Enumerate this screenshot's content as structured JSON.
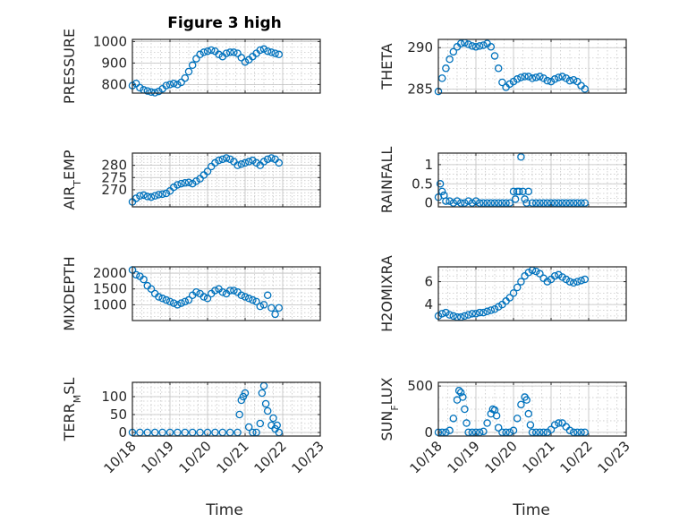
{
  "figure": {
    "title": "Figure 3 high",
    "x_axis_label": "Time"
  },
  "chart_data": [
    {
      "type": "scatter",
      "ylabel": "PRESSURE",
      "ylim": [
        760,
        1010
      ],
      "yticks": [
        800,
        900,
        1000
      ],
      "xlim": [
        "10/18",
        "10/23"
      ],
      "x": [
        0,
        0.1,
        0.2,
        0.3,
        0.4,
        0.5,
        0.6,
        0.7,
        0.8,
        0.9,
        1.0,
        1.1,
        1.2,
        1.3,
        1.4,
        1.5,
        1.6,
        1.7,
        1.8,
        1.9,
        2.0,
        2.1,
        2.2,
        2.3,
        2.4,
        2.5,
        2.6,
        2.7,
        2.8,
        2.9,
        3.0,
        3.1,
        3.2,
        3.3,
        3.4,
        3.5,
        3.6,
        3.7,
        3.8,
        3.9
      ],
      "y": [
        795,
        805,
        785,
        775,
        770,
        765,
        762,
        768,
        780,
        795,
        800,
        805,
        800,
        810,
        830,
        860,
        890,
        920,
        940,
        950,
        955,
        960,
        955,
        940,
        930,
        945,
        950,
        950,
        945,
        925,
        905,
        915,
        930,
        945,
        960,
        965,
        955,
        950,
        945,
        940
      ]
    },
    {
      "type": "scatter",
      "ylabel": "THETA",
      "ylim": [
        284.5,
        291
      ],
      "yticks": [
        285,
        290
      ],
      "xlim": [
        "10/18",
        "10/23"
      ],
      "x": [
        0,
        0.1,
        0.2,
        0.3,
        0.4,
        0.5,
        0.6,
        0.7,
        0.8,
        0.9,
        1.0,
        1.1,
        1.2,
        1.3,
        1.4,
        1.5,
        1.6,
        1.7,
        1.8,
        1.9,
        2.0,
        2.1,
        2.2,
        2.3,
        2.4,
        2.5,
        2.6,
        2.7,
        2.8,
        2.9,
        3.0,
        3.1,
        3.2,
        3.3,
        3.4,
        3.5,
        3.6,
        3.7,
        3.8,
        3.9
      ],
      "y": [
        284.7,
        286.3,
        287.5,
        288.6,
        289.5,
        290.1,
        290.5,
        290.6,
        290.4,
        290.2,
        290.1,
        290.2,
        290.3,
        290.5,
        290.1,
        289.0,
        287.5,
        285.8,
        285.2,
        285.6,
        285.9,
        286.2,
        286.4,
        286.5,
        286.5,
        286.3,
        286.4,
        286.5,
        286.3,
        286.0,
        285.9,
        286.2,
        286.4,
        286.5,
        286.3,
        286.0,
        286.1,
        285.9,
        285.4,
        285.0
      ]
    },
    {
      "type": "scatter",
      "ylabel": "AIR_TEMP",
      "ylim": [
        263,
        285
      ],
      "yticks": [
        270,
        275,
        280
      ],
      "xlim": [
        "10/18",
        "10/23"
      ],
      "x": [
        0,
        0.1,
        0.2,
        0.3,
        0.4,
        0.5,
        0.6,
        0.7,
        0.8,
        0.9,
        1.0,
        1.1,
        1.2,
        1.3,
        1.4,
        1.5,
        1.6,
        1.7,
        1.8,
        1.9,
        2.0,
        2.1,
        2.2,
        2.3,
        2.4,
        2.5,
        2.6,
        2.7,
        2.8,
        2.9,
        3.0,
        3.1,
        3.2,
        3.3,
        3.4,
        3.5,
        3.6,
        3.7,
        3.8,
        3.9
      ],
      "y": [
        265.0,
        266.5,
        267.5,
        267.8,
        267.2,
        267.0,
        267.5,
        268.0,
        268.2,
        268.5,
        269.5,
        271.0,
        272.0,
        272.5,
        272.8,
        273.0,
        272.5,
        273.5,
        274.5,
        276.0,
        277.5,
        279.5,
        281.0,
        282.0,
        282.5,
        283.0,
        282.5,
        281.5,
        280.0,
        280.5,
        281.0,
        281.5,
        282.0,
        281.0,
        280.0,
        281.5,
        282.5,
        283.0,
        282.5,
        281.0
      ]
    },
    {
      "type": "scatter",
      "ylabel": "RAINFALL",
      "ylim": [
        -0.1,
        1.3
      ],
      "yticks": [
        0,
        0.5,
        1
      ],
      "xlim": [
        "10/18",
        "10/23"
      ],
      "x": [
        0,
        0.05,
        0.1,
        0.15,
        0.2,
        0.3,
        0.4,
        0.5,
        0.6,
        0.7,
        0.8,
        0.9,
        1.0,
        1.1,
        1.2,
        1.3,
        1.4,
        1.5,
        1.6,
        1.7,
        1.8,
        1.9,
        2.0,
        2.05,
        2.1,
        2.15,
        2.2,
        2.25,
        2.3,
        2.35,
        2.4,
        2.5,
        2.6,
        2.7,
        2.8,
        2.9,
        3.0,
        3.1,
        3.2,
        3.3,
        3.4,
        3.5,
        3.6,
        3.7,
        3.8,
        3.9
      ],
      "y": [
        0.15,
        0.5,
        0.3,
        0.2,
        0.05,
        0.05,
        0,
        0.05,
        0,
        0,
        0.05,
        0,
        0.05,
        0,
        0,
        0,
        0,
        0,
        0,
        0,
        0,
        0,
        0.3,
        0.1,
        0.3,
        0.3,
        1.2,
        0.3,
        0.1,
        0,
        0.3,
        0,
        0,
        0,
        0,
        0,
        0,
        0,
        0,
        0,
        0,
        0,
        0,
        0,
        0,
        0
      ]
    },
    {
      "type": "scatter",
      "ylabel": "MIXDEPTH",
      "ylim": [
        500,
        2200
      ],
      "yticks": [
        1000,
        1500,
        2000
      ],
      "xlim": [
        "10/18",
        "10/23"
      ],
      "x": [
        0,
        0.1,
        0.2,
        0.3,
        0.4,
        0.5,
        0.6,
        0.7,
        0.8,
        0.9,
        1.0,
        1.1,
        1.2,
        1.3,
        1.4,
        1.5,
        1.6,
        1.7,
        1.8,
        1.9,
        2.0,
        2.1,
        2.2,
        2.3,
        2.4,
        2.5,
        2.6,
        2.7,
        2.8,
        2.9,
        3.0,
        3.1,
        3.2,
        3.3,
        3.4,
        3.5,
        3.6,
        3.7,
        3.8,
        3.9
      ],
      "y": [
        2100,
        1950,
        1900,
        1800,
        1600,
        1500,
        1350,
        1250,
        1200,
        1150,
        1100,
        1050,
        1000,
        1050,
        1100,
        1150,
        1300,
        1400,
        1350,
        1250,
        1200,
        1350,
        1450,
        1500,
        1400,
        1350,
        1450,
        1450,
        1400,
        1300,
        1250,
        1200,
        1150,
        1100,
        950,
        1000,
        1300,
        900,
        700,
        900
      ]
    },
    {
      "type": "scatter",
      "ylabel": "H2OMIXRA",
      "ylim": [
        2.6,
        7.3
      ],
      "yticks": [
        4,
        6
      ],
      "xlim": [
        "10/18",
        "10/23"
      ],
      "x": [
        0,
        0.1,
        0.2,
        0.3,
        0.4,
        0.5,
        0.6,
        0.7,
        0.8,
        0.9,
        1.0,
        1.1,
        1.2,
        1.3,
        1.4,
        1.5,
        1.6,
        1.7,
        1.8,
        1.9,
        2.0,
        2.1,
        2.2,
        2.3,
        2.4,
        2.5,
        2.6,
        2.7,
        2.8,
        2.9,
        3.0,
        3.1,
        3.2,
        3.3,
        3.4,
        3.5,
        3.6,
        3.7,
        3.8,
        3.9
      ],
      "y": [
        3.0,
        3.2,
        3.3,
        3.1,
        3.0,
        2.9,
        2.9,
        3.0,
        3.1,
        3.2,
        3.2,
        3.3,
        3.3,
        3.4,
        3.5,
        3.6,
        3.8,
        4.0,
        4.3,
        4.6,
        5.0,
        5.5,
        6.0,
        6.5,
        6.8,
        7.0,
        6.9,
        6.7,
        6.3,
        6.0,
        6.2,
        6.5,
        6.6,
        6.4,
        6.2,
        6.0,
        5.9,
        6.0,
        6.1,
        6.2
      ]
    },
    {
      "type": "scatter",
      "ylabel": "TERR_MSL",
      "ylim": [
        -10,
        140
      ],
      "yticks": [
        0,
        50,
        100
      ],
      "xlim": [
        "10/18",
        "10/23"
      ],
      "x": [
        0,
        0.2,
        0.4,
        0.6,
        0.8,
        1.0,
        1.2,
        1.4,
        1.6,
        1.8,
        2.0,
        2.2,
        2.4,
        2.6,
        2.8,
        2.85,
        2.9,
        2.95,
        3.0,
        3.1,
        3.2,
        3.3,
        3.4,
        3.45,
        3.5,
        3.55,
        3.6,
        3.7,
        3.75,
        3.8,
        3.85,
        3.9
      ],
      "y": [
        0,
        0,
        0,
        0,
        0,
        0,
        0,
        0,
        0,
        0,
        0,
        0,
        0,
        0,
        0,
        50,
        90,
        100,
        110,
        15,
        0,
        0,
        25,
        110,
        130,
        80,
        60,
        20,
        40,
        10,
        20,
        0
      ]
    },
    {
      "type": "scatter",
      "ylabel": "SUN_FLUX",
      "ylim": [
        -40,
        540
      ],
      "yticks": [
        0,
        500
      ],
      "xlim": [
        "10/18",
        "10/23"
      ],
      "x": [
        0,
        0.1,
        0.2,
        0.3,
        0.4,
        0.5,
        0.55,
        0.6,
        0.65,
        0.7,
        0.75,
        0.8,
        0.9,
        1.0,
        1.1,
        1.2,
        1.3,
        1.4,
        1.45,
        1.5,
        1.55,
        1.6,
        1.7,
        1.8,
        1.9,
        2.0,
        2.1,
        2.2,
        2.3,
        2.35,
        2.4,
        2.45,
        2.5,
        2.6,
        2.7,
        2.8,
        2.9,
        3.0,
        3.1,
        3.2,
        3.3,
        3.4,
        3.5,
        3.6,
        3.7,
        3.8,
        3.9
      ],
      "y": [
        0,
        0,
        0,
        20,
        150,
        350,
        450,
        430,
        380,
        250,
        100,
        0,
        0,
        0,
        0,
        10,
        100,
        200,
        250,
        240,
        180,
        50,
        0,
        0,
        0,
        20,
        150,
        300,
        380,
        350,
        200,
        80,
        0,
        0,
        0,
        0,
        0,
        30,
        80,
        100,
        100,
        60,
        20,
        0,
        0,
        0,
        0
      ]
    }
  ]
}
